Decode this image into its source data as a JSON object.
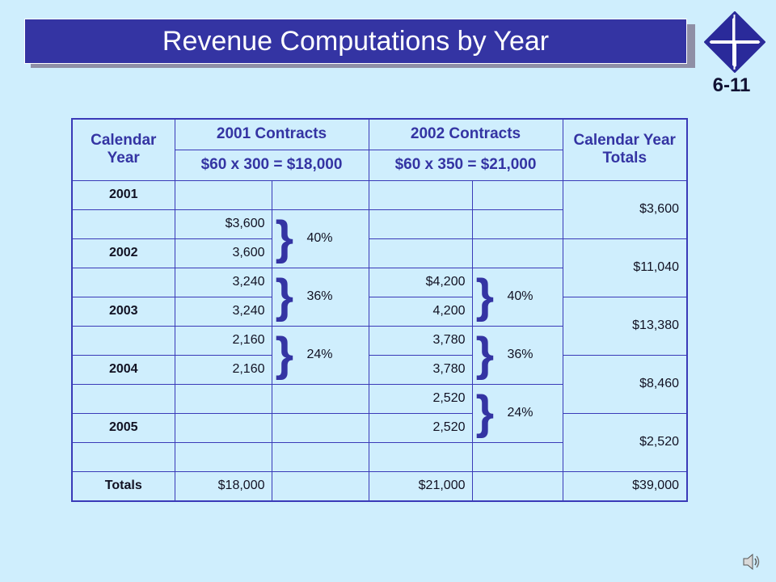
{
  "title": "Revenue Computations by Year",
  "slide_number": "6-11",
  "table": {
    "headers": {
      "calendar_year": "Calendar Year",
      "contracts_2001": "2001 Contracts",
      "contracts_2002": "2002 Contracts",
      "year_totals": "Calendar Year Totals",
      "calc_2001": "$60 x 300 = $18,000",
      "calc_2002": "$60 x 350 = $21,000"
    },
    "years": {
      "y2001": "2001",
      "y2002": "2002",
      "y2003": "2003",
      "y2004": "2004",
      "y2005": "2005",
      "totals": "Totals"
    },
    "col_2001": [
      "$3,600",
      "3,600",
      "3,240",
      "3,240",
      "2,160",
      "2,160"
    ],
    "col_2002": [
      "$4,200",
      "4,200",
      "3,780",
      "3,780",
      "2,520",
      "2,520"
    ],
    "pct_2001": [
      "40%",
      "36%",
      "24%"
    ],
    "pct_2002": [
      "40%",
      "36%",
      "24%"
    ],
    "year_totals": [
      "$3,600",
      "$11,040",
      "$13,380",
      "$8,460",
      "$2,520"
    ],
    "totals": {
      "c2001": "$18,000",
      "c2002": "$21,000",
      "all": "$39,000"
    }
  },
  "colors": {
    "background": "#cfeefd",
    "title_bar": "#3434a3",
    "border": "#3a3ab8"
  },
  "icons": {
    "logo": "diamond-logo-icon",
    "speaker": "speaker-icon"
  }
}
